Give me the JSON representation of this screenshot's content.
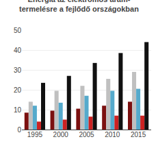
{
  "chart_data": {
    "type": "bar",
    "title": "Energia az elektromos áram-\ntermelésre a fejlődő országokban",
    "categories": [
      "1995",
      "2000",
      "2005",
      "2010",
      "2015"
    ],
    "series": [
      {
        "color": "#7B1010",
        "values": [
          8.5,
          9.5,
          10.5,
          12.0,
          14.0
        ]
      },
      {
        "color": "#C0C0C0",
        "values": [
          14.0,
          19.5,
          22.0,
          25.5,
          29.0
        ]
      },
      {
        "color": "#55AACC",
        "values": [
          12.0,
          13.5,
          17.0,
          19.5,
          20.5
        ]
      },
      {
        "color": "#CC2222",
        "values": [
          4.0,
          5.0,
          6.5,
          7.0,
          7.0
        ]
      },
      {
        "color": "#111111",
        "values": [
          23.5,
          27.0,
          33.5,
          38.5,
          44.0
        ]
      }
    ],
    "ylim": [
      0,
      50
    ],
    "yticks": [
      0,
      10,
      20,
      30,
      40,
      50
    ],
    "grid": true
  }
}
